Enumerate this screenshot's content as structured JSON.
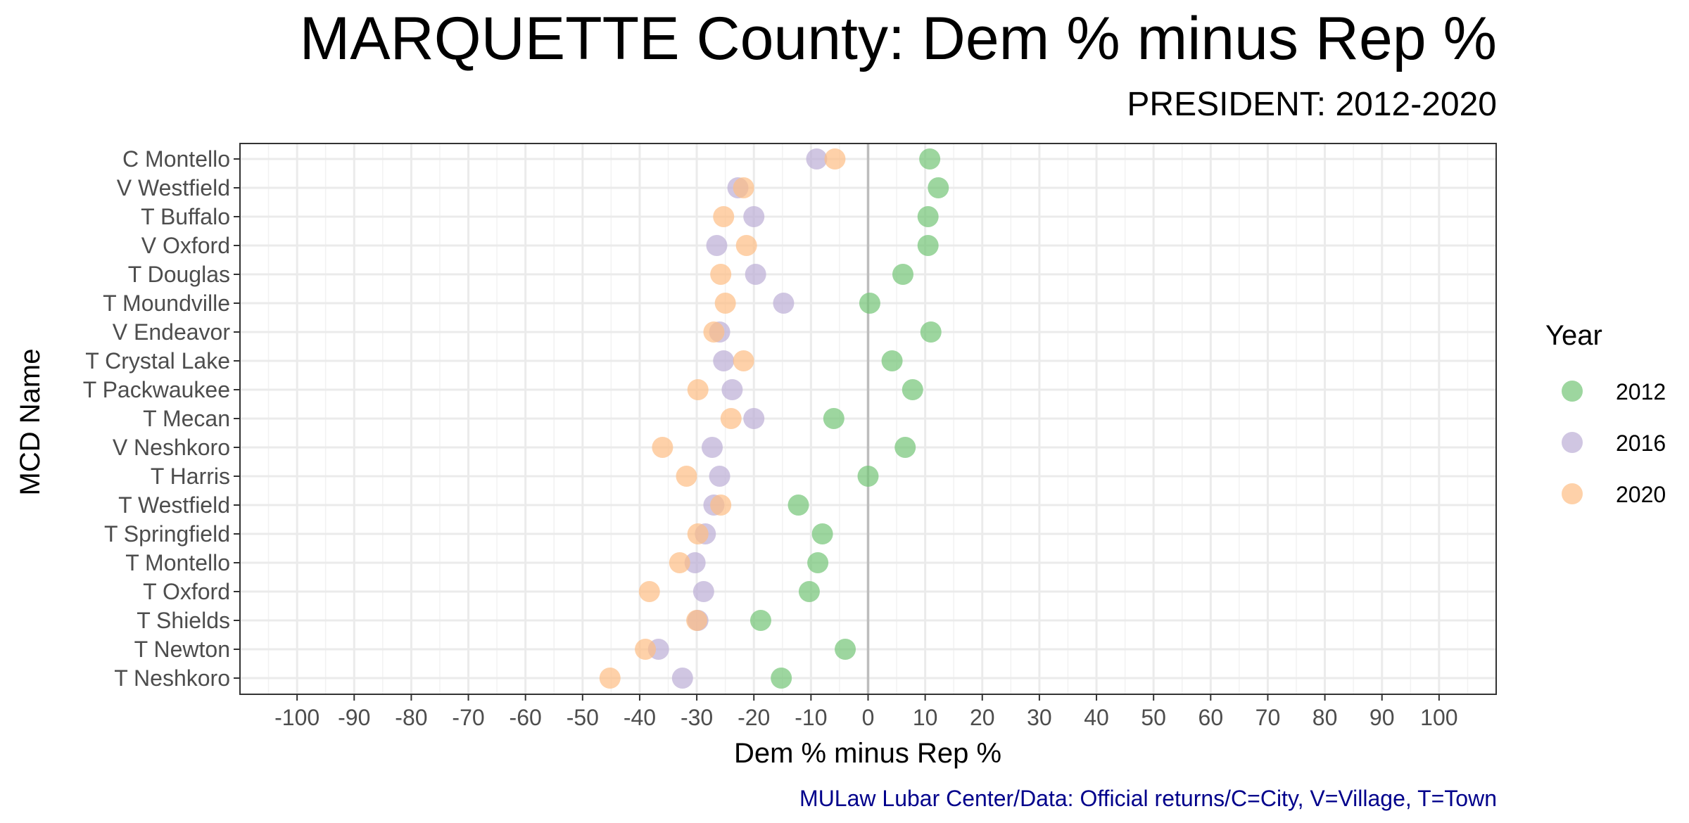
{
  "chart_data": {
    "type": "scatter",
    "title": "MARQUETTE County: Dem % minus Rep %",
    "subtitle": "PRESIDENT: 2012-2020",
    "xlabel": "Dem % minus Rep %",
    "ylabel": "MCD Name",
    "caption": "MULaw Lubar Center/Data: Official returns/C=City, V=Village, T=Town",
    "xlim": [
      -110,
      110
    ],
    "x_ticks": [
      -100,
      -90,
      -80,
      -70,
      -60,
      -50,
      -40,
      -30,
      -20,
      -10,
      0,
      10,
      20,
      30,
      40,
      50,
      60,
      70,
      80,
      90,
      100
    ],
    "x_tick_labels": [
      "-100",
      "-90",
      "-80",
      "-70",
      "-60",
      "-50",
      "-40",
      "-30",
      "-20",
      "-10",
      "0",
      "10",
      "20",
      "30",
      "40",
      "50",
      "60",
      "70",
      "80",
      "90",
      "100"
    ],
    "reference_line_x": 0,
    "grid": true,
    "legend": {
      "title": "Year",
      "placement": "right"
    },
    "categories": [
      "C Montello",
      "V Westfield",
      "T Buffalo",
      "V Oxford",
      "T Douglas",
      "T Moundville",
      "V Endeavor",
      "T Crystal Lake",
      "T Packwaukee",
      "T Mecan",
      "V Neshkoro",
      "T Harris",
      "T Westfield",
      "T Springfield",
      "T Montello",
      "T Oxford",
      "T Shields",
      "T Newton",
      "T Neshkoro"
    ],
    "series": [
      {
        "name": "2012",
        "color": "#74c476",
        "values": [
          10.8,
          12.3,
          10.5,
          10.5,
          6.1,
          0.3,
          11.0,
          4.2,
          7.8,
          -6.0,
          6.5,
          0.0,
          -12.2,
          -8.0,
          -8.8,
          -10.3,
          -18.8,
          -4.0,
          -15.2
        ]
      },
      {
        "name": "2016",
        "color": "#bcaed6",
        "values": [
          -9.0,
          -22.8,
          -20.0,
          -26.5,
          -19.7,
          -14.8,
          -26.0,
          -25.3,
          -23.8,
          -20.0,
          -27.3,
          -26.0,
          -27.0,
          -28.5,
          -30.3,
          -28.8,
          -29.8,
          -36.7,
          -32.5
        ]
      },
      {
        "name": "2020",
        "color": "#fdbe85",
        "values": [
          -5.8,
          -21.8,
          -25.3,
          -21.3,
          -25.8,
          -25.0,
          -27.0,
          -21.8,
          -29.8,
          -24.0,
          -36.0,
          -31.8,
          -25.8,
          -29.8,
          -33.0,
          -38.3,
          -30.0,
          -39.0,
          -45.2
        ]
      }
    ]
  }
}
